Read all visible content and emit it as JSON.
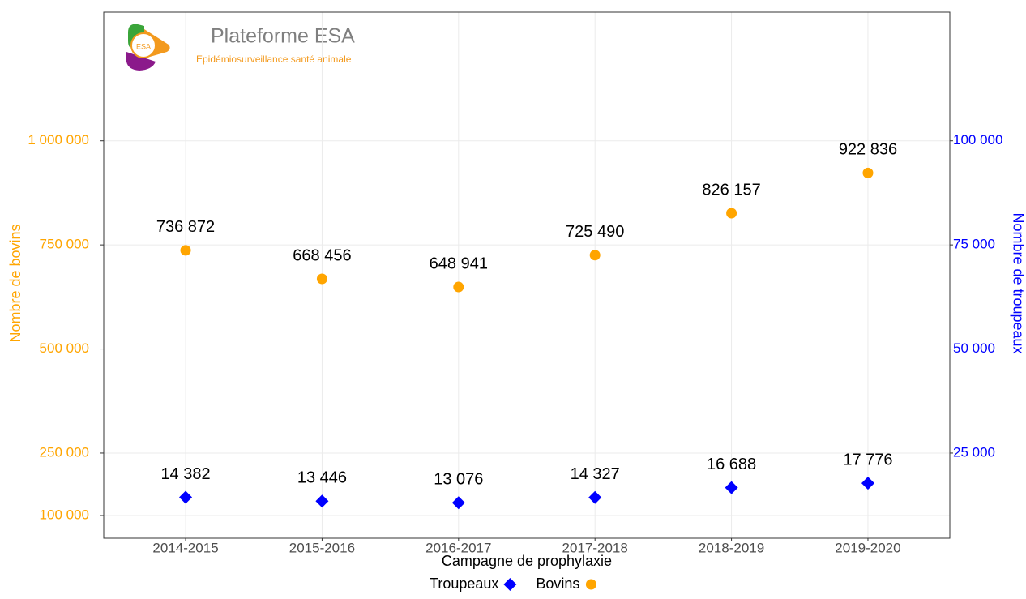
{
  "logo": {
    "badge": "ESA",
    "title": "Plateforme ESA",
    "subtitle": "Epidémiosurveillance santé animale"
  },
  "chart_data": {
    "type": "scatter",
    "xlabel": "Campagne de prophylaxie",
    "ylabel": "Nombre de bovins",
    "y2label": "Nombre de troupeaux",
    "categories": [
      "2014-2015",
      "2015-2016",
      "2016-2017",
      "2017-2018",
      "2018-2019",
      "2019-2020"
    ],
    "series": [
      {
        "name": "Troupeaux",
        "color": "#0000ff",
        "marker": "diamond",
        "axis": "y2",
        "values": [
          14382,
          13446,
          13076,
          14327,
          16688,
          17776
        ],
        "value_labels": [
          "14 382",
          "13 446",
          "13 076",
          "14 327",
          "16 688",
          "17 776"
        ]
      },
      {
        "name": "Bovins",
        "color": "#ffa500",
        "marker": "circle",
        "values": [
          736872,
          668456,
          648941,
          725490,
          826157,
          922836
        ],
        "value_labels": [
          "736 872",
          "668 456",
          "648 941",
          "725 490",
          "826 157",
          "922 836"
        ]
      }
    ],
    "ylim": [
      45500,
      1309000
    ],
    "yticks": [
      {
        "value": 100000,
        "label": "100 000"
      },
      {
        "value": 250000,
        "label": "250 000"
      },
      {
        "value": 500000,
        "label": "500 000"
      },
      {
        "value": 750000,
        "label": "750 000"
      },
      {
        "value": 1000000,
        "label": "1 000 000"
      }
    ],
    "y2lim": [
      4550,
      130900
    ],
    "y2ticks": [
      {
        "value": 25000,
        "label": "25 000"
      },
      {
        "value": 50000,
        "label": "50 000"
      },
      {
        "value": 75000,
        "label": "75 000"
      },
      {
        "value": 100000,
        "label": "100 000"
      }
    ],
    "ycolor": "#ffa500",
    "y2color": "#0000ff",
    "grid": true,
    "legend": "bottom"
  }
}
